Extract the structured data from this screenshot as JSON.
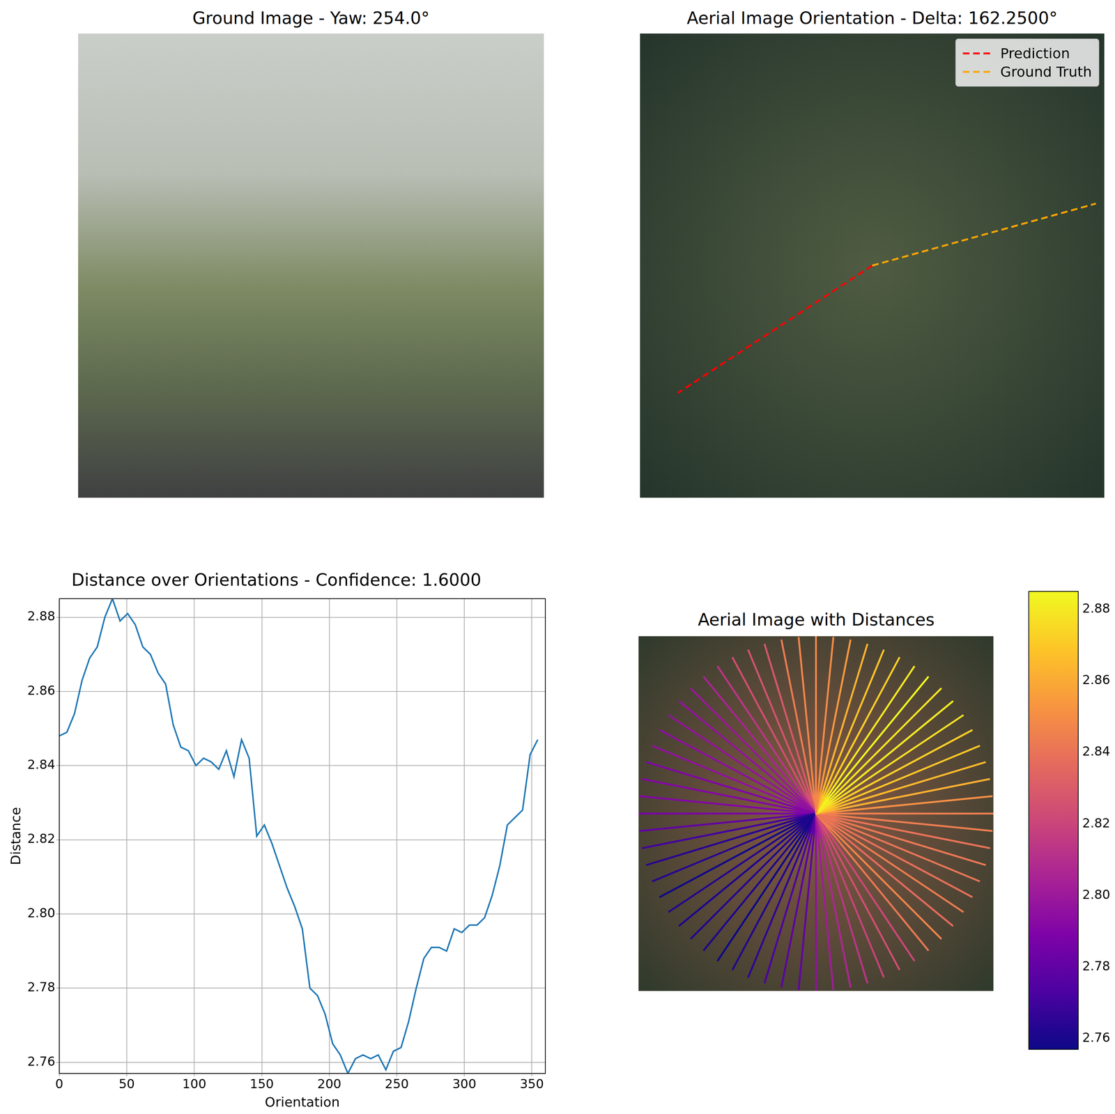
{
  "chart_data": [
    {
      "type": "image",
      "title": "Ground Image - Yaw: 254.0°"
    },
    {
      "type": "orientation",
      "title": "Aerial Image Orientation - Delta: 162.2500°",
      "legend": "upper right",
      "series": [
        {
          "name": "Prediction",
          "color": "#ff0000",
          "line_style": "dashed",
          "angle": 236.75
        },
        {
          "name": "Ground Truth",
          "color": "#ffa500",
          "line_style": "dashed",
          "angle": 74.5
        }
      ]
    },
    {
      "type": "line",
      "title": "Distance over Orientations - Confidence: 1.6000",
      "x_label": "Orientation",
      "y_label": "Distance",
      "color": "#1f77b4",
      "grid": true,
      "x": [
        0,
        5.625,
        11.25,
        16.875,
        22.5,
        28.125,
        33.75,
        39.375,
        45,
        50.625,
        56.25,
        61.875,
        67.5,
        73.125,
        78.75,
        84.375,
        90,
        95.625,
        101.25,
        106.875,
        112.5,
        118.125,
        123.75,
        129.375,
        135,
        140.625,
        146.25,
        151.875,
        157.5,
        163.125,
        168.75,
        174.375,
        180,
        185.625,
        191.25,
        196.875,
        202.5,
        208.125,
        213.75,
        219.375,
        225,
        230.625,
        236.25,
        241.875,
        247.5,
        253.125,
        258.75,
        264.375,
        270,
        275.625,
        281.25,
        286.875,
        292.5,
        298.125,
        303.75,
        309.375,
        315,
        320.625,
        326.25,
        331.875,
        337.5,
        343.125,
        348.75,
        354.375
      ],
      "values": [
        2.848,
        2.849,
        2.854,
        2.863,
        2.869,
        2.872,
        2.88,
        2.885,
        2.879,
        2.881,
        2.878,
        2.872,
        2.87,
        2.865,
        2.862,
        2.851,
        2.845,
        2.844,
        2.84,
        2.842,
        2.841,
        2.839,
        2.844,
        2.837,
        2.847,
        2.842,
        2.821,
        2.824,
        2.819,
        2.813,
        2.807,
        2.802,
        2.796,
        2.78,
        2.778,
        2.773,
        2.765,
        2.762,
        2.757,
        2.761,
        2.762,
        2.761,
        2.762,
        2.758,
        2.763,
        2.764,
        2.771,
        2.78,
        2.788,
        2.791,
        2.791,
        2.79,
        2.796,
        2.795,
        2.797,
        2.797,
        2.799,
        2.805,
        2.813,
        2.824,
        2.826,
        2.828,
        2.843,
        2.847
      ],
      "xlim": [
        0,
        360
      ],
      "xticks": [
        0,
        50,
        100,
        150,
        200,
        250,
        300,
        350
      ],
      "ylim": [
        2.757,
        2.885
      ],
      "yticks": [
        2.76,
        2.78,
        {
          "value": 2.8,
          "label": "2.80"
        },
        2.82,
        2.84,
        2.86,
        2.88
      ]
    },
    {
      "type": "radial",
      "title": "Aerial Image with Distances",
      "x": [
        0,
        5.625,
        11.25,
        16.875,
        22.5,
        28.125,
        33.75,
        39.375,
        45,
        50.625,
        56.25,
        61.875,
        67.5,
        73.125,
        78.75,
        84.375,
        90,
        95.625,
        101.25,
        106.875,
        112.5,
        118.125,
        123.75,
        129.375,
        135,
        140.625,
        146.25,
        151.875,
        157.5,
        163.125,
        168.75,
        174.375,
        180,
        185.625,
        191.25,
        196.875,
        202.5,
        208.125,
        213.75,
        219.375,
        225,
        230.625,
        236.25,
        241.875,
        247.5,
        253.125,
        258.75,
        264.375,
        270,
        275.625,
        281.25,
        286.875,
        292.5,
        298.125,
        303.75,
        309.375,
        315,
        320.625,
        326.25,
        331.875,
        337.5,
        343.125,
        348.75,
        354.375
      ],
      "values": [
        2.848,
        2.849,
        2.854,
        2.863,
        2.869,
        2.872,
        2.88,
        2.885,
        2.879,
        2.881,
        2.878,
        2.872,
        2.87,
        2.865,
        2.862,
        2.851,
        2.845,
        2.844,
        2.84,
        2.842,
        2.841,
        2.839,
        2.844,
        2.837,
        2.847,
        2.842,
        2.821,
        2.824,
        2.819,
        2.813,
        2.807,
        2.802,
        2.796,
        2.78,
        2.778,
        2.773,
        2.765,
        2.762,
        2.757,
        2.761,
        2.762,
        2.761,
        2.762,
        2.758,
        2.763,
        2.764,
        2.771,
        2.78,
        2.788,
        2.791,
        2.791,
        2.79,
        2.796,
        2.795,
        2.797,
        2.797,
        2.799,
        2.805,
        2.813,
        2.824,
        2.826,
        2.828,
        2.843,
        2.847
      ],
      "colorbar": {
        "range": [
          2.757,
          2.885
        ],
        "ticks": [
          2.76,
          2.78,
          {
            "value": 2.8,
            "label": "2.80"
          },
          2.82,
          2.84,
          2.86,
          2.88
        ]
      }
    }
  ]
}
